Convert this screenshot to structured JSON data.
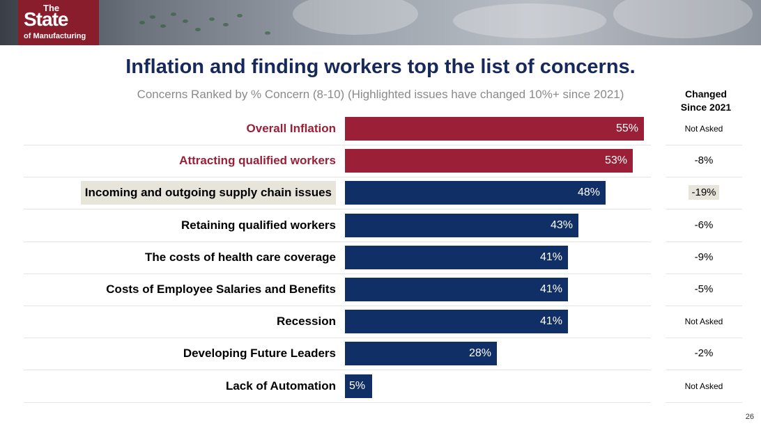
{
  "logo": {
    "line1": "The",
    "line2": "State",
    "line3": "of Manufacturing"
  },
  "title": "Inflation and finding workers top the list of concerns.",
  "subtitle": "Concerns Ranked by % Concern (8-10) (Highlighted issues have changed 10%+ since 2021)",
  "changed_header": {
    "line1": "Changed",
    "line2": "Since 2021"
  },
  "page_number": "26",
  "colors": {
    "highlight_red": "#9b1f36",
    "navy": "#0f2f66",
    "title": "#17295a",
    "label_highlight_bg": "#e7e4da"
  },
  "chart_data": {
    "type": "bar",
    "orientation": "horizontal",
    "title": "Inflation and finding workers top the list of concerns.",
    "subtitle": "Concerns Ranked by % Concern (8-10) (Highlighted issues have changed 10%+ since 2021)",
    "xlim": [
      0,
      100
    ],
    "grid": false,
    "categories": [
      "Overall Inflation",
      "Attracting qualified workers",
      "Incoming and outgoing supply chain issues",
      "Retaining qualified workers",
      "The costs of health care coverage",
      "Costs of Employee Salaries and Benefits",
      "Recession",
      "Developing Future Leaders",
      "Lack of Automation"
    ],
    "values": [
      55,
      53,
      48,
      43,
      41,
      41,
      41,
      28,
      5
    ],
    "value_labels": [
      "55%",
      "53%",
      "48%",
      "43%",
      "41%",
      "41%",
      "41%",
      "28%",
      "5%"
    ],
    "changed_since_2021": [
      "Not Asked",
      "-8%",
      "-19%",
      "-6%",
      "-9%",
      "-5%",
      "Not Asked",
      "-2%",
      "Not Asked"
    ],
    "bar_colors": [
      "#9b1f36",
      "#9b1f36",
      "#0f2f66",
      "#0f2f66",
      "#0f2f66",
      "#0f2f66",
      "#0f2f66",
      "#0f2f66",
      "#0f2f66"
    ],
    "label_colors": [
      "#9b1f36",
      "#9b1f36",
      "#000000",
      "#000000",
      "#000000",
      "#000000",
      "#000000",
      "#000000",
      "#000000"
    ],
    "highlighted_rows": [
      2
    ]
  }
}
